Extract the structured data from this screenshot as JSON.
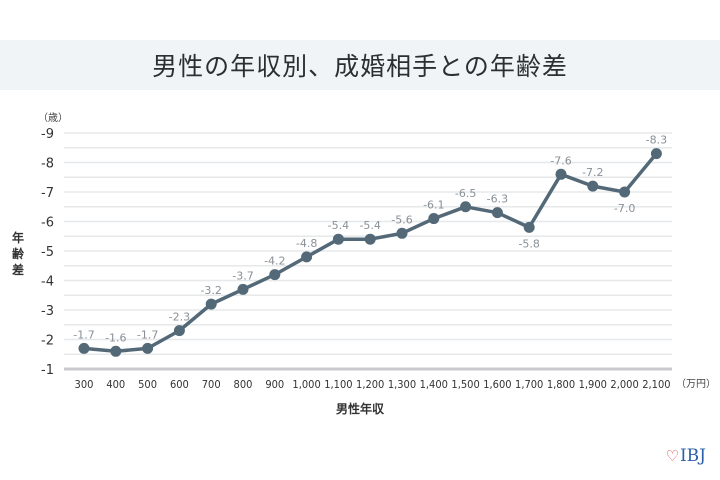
{
  "title": "男性の年収別、成婚相手との年齢差",
  "chart_data": {
    "type": "line",
    "title": "男性の年収別、成婚相手との年齢差",
    "xlabel": "男性年収",
    "x_unit": "（万円）",
    "ylabel": "年齢差",
    "y_unit": "（歳）",
    "categories": [
      "300",
      "400",
      "500",
      "600",
      "700",
      "800",
      "900",
      "1,000",
      "1,100",
      "1,200",
      "1,300",
      "1,400",
      "1,500",
      "1,600",
      "1,700",
      "1,800",
      "1,900",
      "2,000",
      "2,100"
    ],
    "series": [
      {
        "name": "年齢差",
        "values": [
          -1.7,
          -1.6,
          -1.7,
          -2.3,
          -3.2,
          -3.7,
          -4.2,
          -4.8,
          -5.4,
          -5.4,
          -5.6,
          -6.1,
          -6.5,
          -6.3,
          -5.8,
          -7.6,
          -7.2,
          -7.0,
          -8.3
        ]
      }
    ],
    "data_labels": [
      "-1.7",
      "-1.6",
      "-1.7",
      "-2.3",
      "-3.2",
      "-3.7",
      "-4.2",
      "-4.8",
      "-5.4",
      "-5.4",
      "-5.6",
      "-6.1",
      "-6.5",
      "-6.3",
      "-5.8",
      "-7.6",
      "-7.2",
      "-7.0",
      "-8.3"
    ],
    "y_ticks": [
      "-9",
      "-8",
      "-7",
      "-6",
      "-5",
      "-4",
      "-3",
      "-2",
      "-1"
    ],
    "ylim": [
      -1,
      -9
    ],
    "grid": true,
    "grid_step": 0.5,
    "legend": "none",
    "colors": {
      "line": "#546978",
      "marker": "#546978",
      "grid": "#e6e8ea",
      "baseline": "#c8cacc",
      "label": "#8a9097"
    }
  },
  "logo": {
    "text": "IBJ",
    "heart": "♡"
  }
}
